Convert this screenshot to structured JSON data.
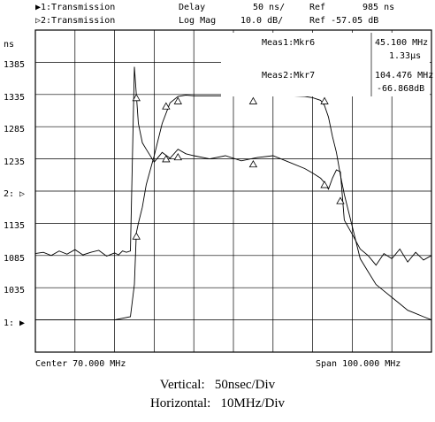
{
  "header": {
    "trace1": "▶1:Transmission",
    "trace1_mode": "Delay",
    "trace1_scale": "50 ns/",
    "trace1_ref": "Ref",
    "trace1_refval": "985 ns",
    "trace2": "▷2:Transmission",
    "trace2_mode": "Log Mag",
    "trace2_scale": "10.0 dB/",
    "trace2_ref": "Ref -57.05 dB"
  },
  "y_axis": {
    "unit": "ns",
    "labels": [
      "1385",
      "1335",
      "1285",
      "1235",
      "2: ▷",
      "1135",
      "1085",
      "1035",
      "1: ▶"
    ]
  },
  "markers": {
    "meas1_label": "Meas1:Mkr6",
    "meas1_value1": "45.100 MHz",
    "meas1_value2": "1.33μs",
    "meas2_label": "Meas2:Mkr7",
    "meas2_value1": "104.476 MHz",
    "meas2_value2": "-66.868dB"
  },
  "footer": {
    "center": "Center 70.000 MHz",
    "span": "Span 100.000 MHz"
  },
  "caption": {
    "vertical": "Vertical:   50nsec/Div",
    "horizontal": "Horizontal:   10MHz/Div"
  },
  "chart_data": {
    "type": "line",
    "x_range": [
      20,
      120
    ],
    "series": [
      {
        "values_x": [
          20,
          22,
          24,
          26,
          28,
          30,
          32,
          34,
          36,
          38,
          40,
          41,
          42,
          43,
          44,
          45,
          46,
          47,
          48,
          50,
          52,
          54,
          56,
          58,
          60,
          64,
          68,
          72,
          76,
          80,
          84,
          88,
          90,
          92,
          93,
          94,
          95,
          96,
          97,
          98,
          100,
          102,
          104,
          106,
          108,
          110,
          112,
          114,
          116,
          118,
          120
        ],
        "values_y": [
          1088,
          1090,
          1085,
          1092,
          1087,
          1094,
          1086,
          1090,
          1093,
          1084,
          1089,
          1086,
          1092,
          1090,
          1092,
          1378,
          1290,
          1260,
          1250,
          1230,
          1245,
          1236,
          1250,
          1243,
          1240,
          1235,
          1240,
          1232,
          1237,
          1240,
          1230,
          1220,
          1213,
          1205,
          1198,
          1188,
          1205,
          1218,
          1215,
          1140,
          1118,
          1095,
          1085,
          1070,
          1088,
          1080,
          1095,
          1075,
          1090,
          1078,
          1085
        ]
      },
      {
        "values_x": [
          20,
          30,
          40,
          44,
          45,
          45.5,
          46,
          47,
          48,
          50,
          52,
          54,
          56,
          58,
          60,
          64,
          70,
          76,
          80,
          84,
          88,
          90,
          92,
          93,
          94,
          95,
          96,
          97,
          98,
          100,
          102,
          104,
          106,
          108,
          110,
          112,
          114,
          116,
          118,
          120
        ],
        "values_y": [
          985,
          985,
          985,
          990,
          1040,
          1120,
          1135,
          1160,
          1195,
          1240,
          1290,
          1322,
          1332,
          1334,
          1333,
          1333,
          1333,
          1334,
          1333,
          1333,
          1332,
          1330,
          1326,
          1318,
          1300,
          1270,
          1245,
          1210,
          1180,
          1130,
          1080,
          1060,
          1040,
          1030,
          1020,
          1010,
          1000,
          995,
          990,
          985
        ]
      }
    ]
  }
}
